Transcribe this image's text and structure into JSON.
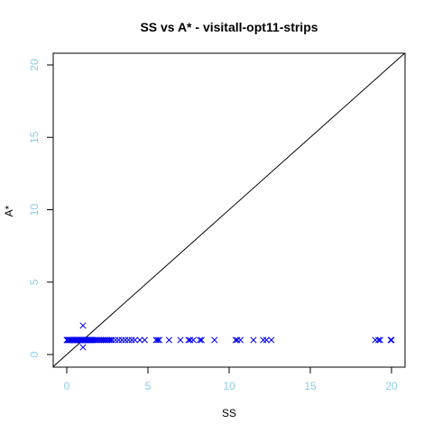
{
  "chart_data": {
    "type": "scatter",
    "title": "SS vs A* - visitall-opt11-strips",
    "xlabel": "SS",
    "ylabel": "A*",
    "xlim": [
      0,
      20
    ],
    "ylim": [
      0,
      20
    ],
    "xticks": [
      "0",
      "5",
      "10",
      "15",
      "20"
    ],
    "yticks": [
      "0",
      "5",
      "10",
      "15",
      "20"
    ],
    "grid": false,
    "diagonal_reference_line": true,
    "marker": "x",
    "colors": {
      "points": "#0000ee",
      "ticks": "#87ceeb",
      "axes": "#000000"
    },
    "points": [
      [
        0,
        1
      ],
      [
        0.05,
        1
      ],
      [
        0.1,
        1
      ],
      [
        0.15,
        1
      ],
      [
        0.2,
        1
      ],
      [
        0.25,
        1
      ],
      [
        0.3,
        1
      ],
      [
        0.35,
        1
      ],
      [
        0.4,
        1
      ],
      [
        0.45,
        1
      ],
      [
        0.5,
        1
      ],
      [
        0.55,
        1
      ],
      [
        0.6,
        1
      ],
      [
        0.65,
        1
      ],
      [
        0.7,
        1
      ],
      [
        0.75,
        1
      ],
      [
        0.8,
        1
      ],
      [
        0.85,
        1
      ],
      [
        0.9,
        1
      ],
      [
        0.95,
        1
      ],
      [
        1.0,
        1
      ],
      [
        1.05,
        1
      ],
      [
        1.1,
        1
      ],
      [
        1.15,
        1
      ],
      [
        1.2,
        1
      ],
      [
        1.25,
        1
      ],
      [
        1.3,
        1
      ],
      [
        1.35,
        1
      ],
      [
        1.4,
        1
      ],
      [
        1.45,
        1
      ],
      [
        1.5,
        1
      ],
      [
        1.55,
        1
      ],
      [
        1.6,
        1
      ],
      [
        1.7,
        1
      ],
      [
        1.8,
        1
      ],
      [
        1.9,
        1
      ],
      [
        2.0,
        1
      ],
      [
        2.1,
        1
      ],
      [
        2.2,
        1
      ],
      [
        2.3,
        1
      ],
      [
        2.4,
        1
      ],
      [
        2.5,
        1
      ],
      [
        2.6,
        1
      ],
      [
        2.7,
        1
      ],
      [
        2.8,
        1
      ],
      [
        3.0,
        1
      ],
      [
        3.2,
        1
      ],
      [
        3.4,
        1
      ],
      [
        3.6,
        1
      ],
      [
        3.8,
        1
      ],
      [
        4.0,
        1
      ],
      [
        4.2,
        1
      ],
      [
        4.5,
        1
      ],
      [
        4.8,
        1
      ],
      [
        5.5,
        1
      ],
      [
        5.6,
        1
      ],
      [
        5.7,
        1
      ],
      [
        6.3,
        1
      ],
      [
        7.0,
        1
      ],
      [
        7.5,
        1
      ],
      [
        7.6,
        1
      ],
      [
        7.8,
        1
      ],
      [
        8.2,
        1
      ],
      [
        8.3,
        1
      ],
      [
        9.1,
        1
      ],
      [
        10.4,
        1
      ],
      [
        10.5,
        1
      ],
      [
        10.7,
        1
      ],
      [
        11.5,
        1
      ],
      [
        12.1,
        1
      ],
      [
        12.3,
        1
      ],
      [
        12.6,
        1
      ],
      [
        19.0,
        1
      ],
      [
        19.2,
        1
      ],
      [
        19.3,
        1
      ],
      [
        19.95,
        1
      ],
      [
        20.0,
        1
      ],
      [
        1.0,
        2
      ],
      [
        1.0,
        0.5
      ]
    ]
  }
}
